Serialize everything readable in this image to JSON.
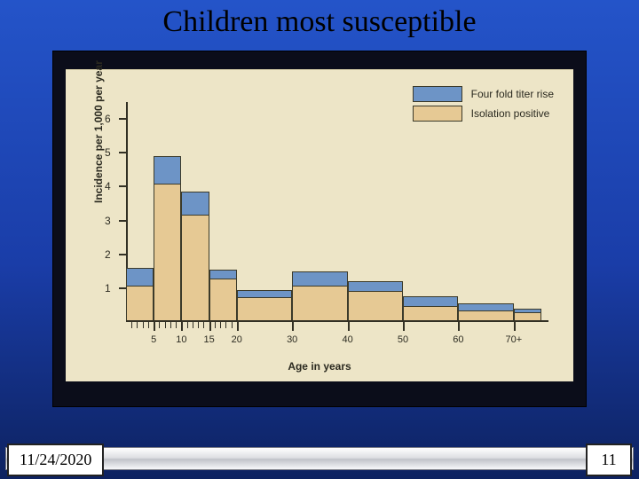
{
  "slide": {
    "title": "Children most susceptible",
    "date": "11/24/2020",
    "page_number": "11",
    "background_gradient": [
      "#2454c9",
      "#0d2260"
    ]
  },
  "chart": {
    "type": "bar",
    "stacked": true,
    "background_color": "#ede5c7",
    "axis_color": "#323024",
    "ylabel": "Incidence per 1,000 per year",
    "xlabel": "Age in years",
    "label_fontsize": 12,
    "tick_fontsize": 12,
    "ylim": [
      0,
      6.5
    ],
    "yticks": [
      1,
      2,
      3,
      4,
      5,
      6
    ],
    "x_axis_max_years": 75,
    "x_major_breaks": [
      5,
      10,
      15,
      20,
      30,
      40,
      50,
      60,
      70
    ],
    "x_major_labels": [
      "5",
      "10",
      "15",
      "20",
      "30",
      "40",
      "50",
      "60",
      "70+"
    ],
    "x_minor_step": 1,
    "x_minor_range": [
      1,
      20
    ],
    "series": [
      {
        "key": "four_fold_titer_rise",
        "label": "Four fold titer rise",
        "color": "#6d94c6"
      },
      {
        "key": "isolation_positive",
        "label": "Isolation positive",
        "color": "#e6c994"
      }
    ],
    "bars": [
      {
        "x0": 0,
        "x1": 5,
        "isolation_positive": 1.0,
        "four_fold_titer_rise": 0.55
      },
      {
        "x0": 5,
        "x1": 10,
        "isolation_positive": 4.0,
        "four_fold_titer_rise": 0.85
      },
      {
        "x0": 10,
        "x1": 15,
        "isolation_positive": 3.1,
        "four_fold_titer_rise": 0.7
      },
      {
        "x0": 15,
        "x1": 20,
        "isolation_positive": 1.2,
        "four_fold_titer_rise": 0.3
      },
      {
        "x0": 20,
        "x1": 30,
        "isolation_positive": 0.65,
        "four_fold_titer_rise": 0.25
      },
      {
        "x0": 30,
        "x1": 40,
        "isolation_positive": 1.0,
        "four_fold_titer_rise": 0.45
      },
      {
        "x0": 40,
        "x1": 50,
        "isolation_positive": 0.85,
        "four_fold_titer_rise": 0.3
      },
      {
        "x0": 50,
        "x1": 60,
        "isolation_positive": 0.4,
        "four_fold_titer_rise": 0.3
      },
      {
        "x0": 60,
        "x1": 70,
        "isolation_positive": 0.25,
        "four_fold_titer_rise": 0.25
      },
      {
        "x0": 70,
        "x1": 75,
        "isolation_positive": 0.2,
        "four_fold_titer_rise": 0.15
      }
    ],
    "legend_position": "top-right"
  }
}
